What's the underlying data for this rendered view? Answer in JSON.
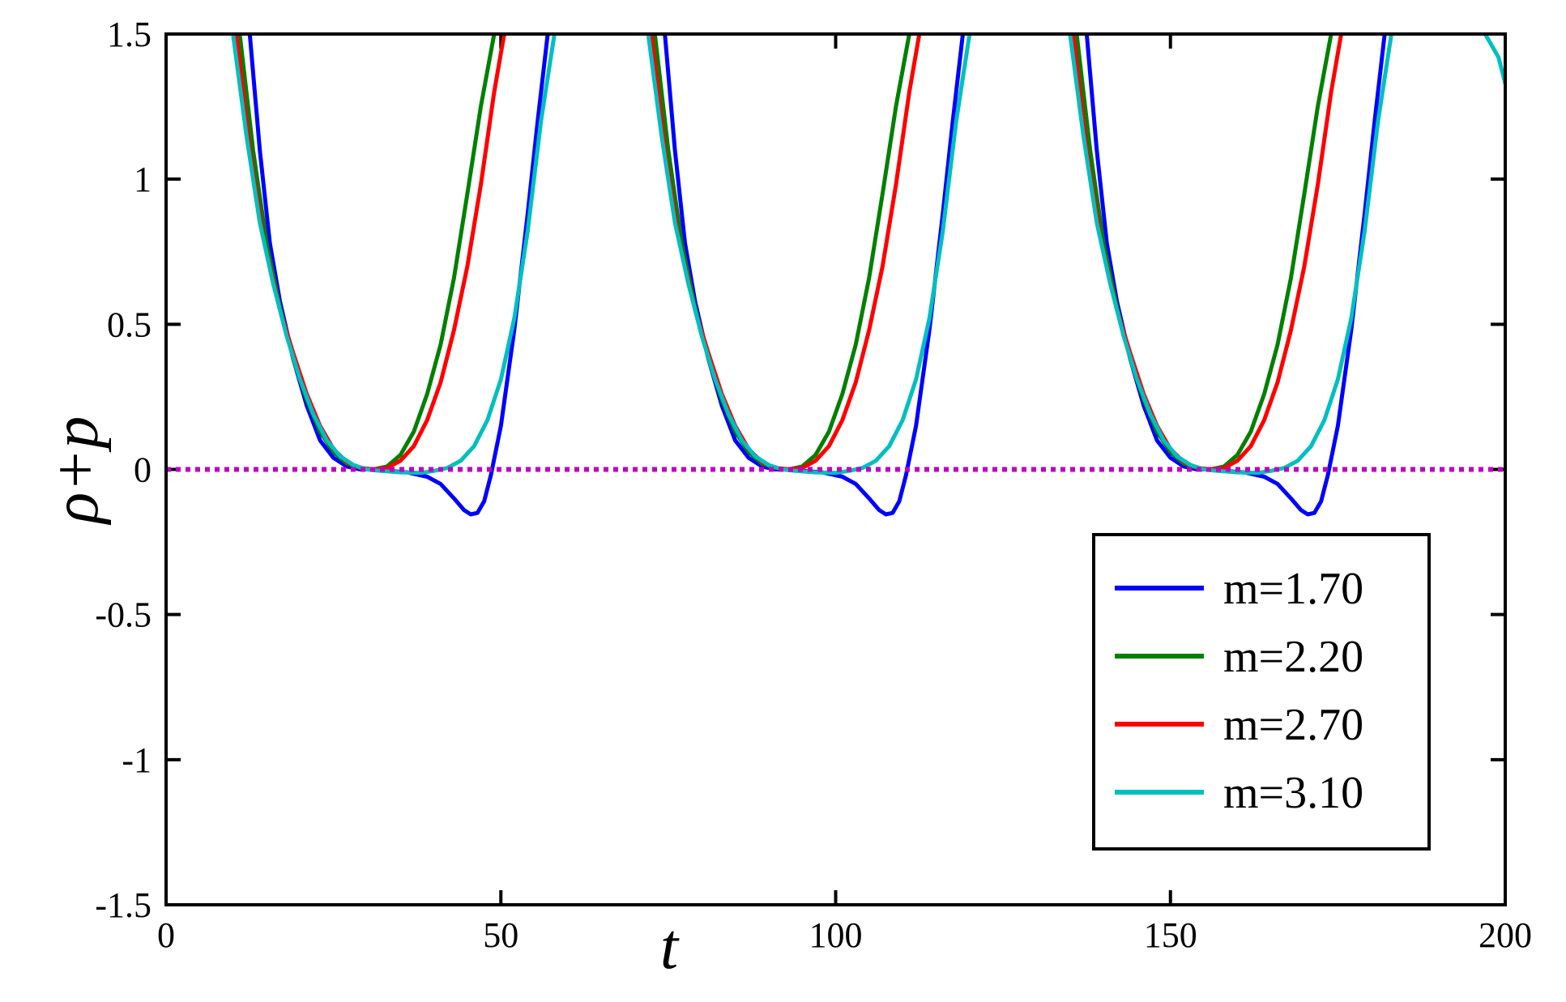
{
  "chart_data": {
    "type": "line",
    "title": "",
    "xlabel": "t",
    "ylabel": "ρ+p",
    "xlim": [
      0,
      200
    ],
    "ylim": [
      -1.5,
      1.5
    ],
    "xticks": [
      0,
      50,
      100,
      150,
      200
    ],
    "xtick_labels": [
      "0",
      "50",
      "100",
      "150",
      "200"
    ],
    "yticks": [
      -1.5,
      -1,
      -0.5,
      0,
      0.5,
      1,
      1.5
    ],
    "ytick_labels": [
      "-1.5",
      "-1",
      "-0.5",
      "0",
      "0.5",
      "1",
      "1.5"
    ],
    "grid": false,
    "legend_position": "lower-right",
    "reference_line": {
      "y": 0,
      "color": "#c000c0",
      "style": "dotted"
    },
    "series": [
      {
        "name": "m=1.70",
        "color": "#0000ff",
        "points": [
          [
            12.5,
            1.5
          ],
          [
            14,
            1.1
          ],
          [
            15.5,
            0.78
          ],
          [
            17,
            0.58
          ],
          [
            19,
            0.38
          ],
          [
            21,
            0.22
          ],
          [
            23,
            0.1
          ],
          [
            25,
            0.04
          ],
          [
            27,
            0.01
          ],
          [
            29,
            0.0
          ],
          [
            31,
            0.0
          ],
          [
            33,
            -0.005
          ],
          [
            36,
            -0.01
          ],
          [
            39,
            -0.025
          ],
          [
            41,
            -0.05
          ],
          [
            43,
            -0.1
          ],
          [
            44.5,
            -0.14
          ],
          [
            45.5,
            -0.155
          ],
          [
            46.5,
            -0.15
          ],
          [
            47.5,
            -0.11
          ],
          [
            48.5,
            -0.02
          ],
          [
            50,
            0.15
          ],
          [
            52,
            0.48
          ],
          [
            54,
            0.88
          ],
          [
            55.5,
            1.2
          ],
          [
            57,
            1.5
          ],
          [
            74.5,
            1.5
          ],
          [
            76,
            1.1
          ],
          [
            77.5,
            0.78
          ],
          [
            79,
            0.58
          ],
          [
            81,
            0.38
          ],
          [
            83,
            0.22
          ],
          [
            85,
            0.1
          ],
          [
            87,
            0.04
          ],
          [
            89,
            0.01
          ],
          [
            91,
            0.0
          ],
          [
            93,
            0.0
          ],
          [
            95,
            -0.005
          ],
          [
            98,
            -0.01
          ],
          [
            101,
            -0.025
          ],
          [
            103,
            -0.05
          ],
          [
            105,
            -0.1
          ],
          [
            106.5,
            -0.14
          ],
          [
            107.5,
            -0.155
          ],
          [
            108.5,
            -0.15
          ],
          [
            109.5,
            -0.11
          ],
          [
            110.5,
            -0.02
          ],
          [
            112,
            0.15
          ],
          [
            114,
            0.48
          ],
          [
            116,
            0.88
          ],
          [
            117.5,
            1.2
          ],
          [
            119,
            1.5
          ],
          [
            137.5,
            1.5
          ],
          [
            139,
            1.1
          ],
          [
            140.5,
            0.78
          ],
          [
            142,
            0.58
          ],
          [
            144,
            0.38
          ],
          [
            146,
            0.22
          ],
          [
            148,
            0.1
          ],
          [
            150,
            0.04
          ],
          [
            152,
            0.01
          ],
          [
            154,
            0.0
          ],
          [
            156,
            0.0
          ],
          [
            158,
            -0.005
          ],
          [
            161,
            -0.01
          ],
          [
            164,
            -0.025
          ],
          [
            166,
            -0.05
          ],
          [
            168,
            -0.1
          ],
          [
            169.5,
            -0.14
          ],
          [
            170.5,
            -0.155
          ],
          [
            171.5,
            -0.15
          ],
          [
            172.5,
            -0.11
          ],
          [
            173.5,
            -0.02
          ],
          [
            175,
            0.15
          ],
          [
            177,
            0.48
          ],
          [
            179,
            0.88
          ],
          [
            180.5,
            1.2
          ],
          [
            182,
            1.5
          ]
        ]
      },
      {
        "name": "m=2.20",
        "color": "#008000",
        "points": [
          [
            11,
            1.5
          ],
          [
            13,
            1.1
          ],
          [
            15,
            0.78
          ],
          [
            17,
            0.56
          ],
          [
            19,
            0.38
          ],
          [
            21,
            0.24
          ],
          [
            23,
            0.13
          ],
          [
            25,
            0.06
          ],
          [
            27,
            0.02
          ],
          [
            29,
            0.005
          ],
          [
            31,
            0.0
          ],
          [
            33,
            0.01
          ],
          [
            35,
            0.05
          ],
          [
            37,
            0.13
          ],
          [
            39,
            0.26
          ],
          [
            41,
            0.43
          ],
          [
            43,
            0.66
          ],
          [
            45,
            0.95
          ],
          [
            47,
            1.25
          ],
          [
            49,
            1.5
          ],
          [
            73,
            1.5
          ],
          [
            75,
            1.1
          ],
          [
            77,
            0.78
          ],
          [
            79,
            0.56
          ],
          [
            81,
            0.38
          ],
          [
            83,
            0.24
          ],
          [
            85,
            0.13
          ],
          [
            87,
            0.06
          ],
          [
            89,
            0.02
          ],
          [
            91,
            0.005
          ],
          [
            93,
            0.0
          ],
          [
            95,
            0.01
          ],
          [
            97,
            0.05
          ],
          [
            99,
            0.13
          ],
          [
            101,
            0.26
          ],
          [
            103,
            0.43
          ],
          [
            105,
            0.66
          ],
          [
            107,
            0.95
          ],
          [
            109,
            1.25
          ],
          [
            111,
            1.5
          ],
          [
            136,
            1.5
          ],
          [
            138,
            1.1
          ],
          [
            140,
            0.78
          ],
          [
            142,
            0.56
          ],
          [
            144,
            0.38
          ],
          [
            146,
            0.24
          ],
          [
            148,
            0.13
          ],
          [
            150,
            0.06
          ],
          [
            152,
            0.02
          ],
          [
            154,
            0.005
          ],
          [
            156,
            0.0
          ],
          [
            158,
            0.01
          ],
          [
            160,
            0.05
          ],
          [
            162,
            0.13
          ],
          [
            164,
            0.26
          ],
          [
            166,
            0.43
          ],
          [
            168,
            0.66
          ],
          [
            170,
            0.95
          ],
          [
            172,
            1.25
          ],
          [
            174,
            1.5
          ]
        ]
      },
      {
        "name": "m=2.70",
        "color": "#ff0000",
        "points": [
          [
            10.5,
            1.5
          ],
          [
            12.5,
            1.1
          ],
          [
            14.5,
            0.8
          ],
          [
            17,
            0.55
          ],
          [
            19,
            0.4
          ],
          [
            21,
            0.26
          ],
          [
            23,
            0.15
          ],
          [
            25,
            0.07
          ],
          [
            27,
            0.025
          ],
          [
            29,
            0.005
          ],
          [
            31,
            0.0
          ],
          [
            33,
            0.005
          ],
          [
            35,
            0.03
          ],
          [
            37,
            0.08
          ],
          [
            39,
            0.17
          ],
          [
            41,
            0.3
          ],
          [
            43,
            0.48
          ],
          [
            45,
            0.7
          ],
          [
            47,
            0.98
          ],
          [
            49,
            1.3
          ],
          [
            50.5,
            1.5
          ],
          [
            72.5,
            1.5
          ],
          [
            74.5,
            1.1
          ],
          [
            76.5,
            0.8
          ],
          [
            79,
            0.55
          ],
          [
            81,
            0.4
          ],
          [
            83,
            0.26
          ],
          [
            85,
            0.15
          ],
          [
            87,
            0.07
          ],
          [
            89,
            0.025
          ],
          [
            91,
            0.005
          ],
          [
            93,
            0.0
          ],
          [
            95,
            0.005
          ],
          [
            97,
            0.03
          ],
          [
            99,
            0.08
          ],
          [
            101,
            0.17
          ],
          [
            103,
            0.3
          ],
          [
            105,
            0.48
          ],
          [
            107,
            0.7
          ],
          [
            109,
            0.98
          ],
          [
            111,
            1.3
          ],
          [
            112.5,
            1.5
          ],
          [
            135.5,
            1.5
          ],
          [
            137.5,
            1.1
          ],
          [
            139.5,
            0.8
          ],
          [
            142,
            0.55
          ],
          [
            144,
            0.4
          ],
          [
            146,
            0.26
          ],
          [
            148,
            0.15
          ],
          [
            150,
            0.07
          ],
          [
            152,
            0.025
          ],
          [
            154,
            0.005
          ],
          [
            156,
            0.0
          ],
          [
            158,
            0.005
          ],
          [
            160,
            0.03
          ],
          [
            162,
            0.08
          ],
          [
            164,
            0.17
          ],
          [
            166,
            0.3
          ],
          [
            168,
            0.48
          ],
          [
            170,
            0.7
          ],
          [
            172,
            0.98
          ],
          [
            174,
            1.3
          ],
          [
            175.5,
            1.5
          ]
        ]
      },
      {
        "name": "m=3.10",
        "color": "#00bfbf",
        "points": [
          [
            10,
            1.5
          ],
          [
            12,
            1.15
          ],
          [
            14,
            0.85
          ],
          [
            16,
            0.64
          ],
          [
            18,
            0.46
          ],
          [
            20,
            0.31
          ],
          [
            22,
            0.19
          ],
          [
            24,
            0.1
          ],
          [
            26,
            0.045
          ],
          [
            28,
            0.015
          ],
          [
            30,
            0.0
          ],
          [
            32,
            -0.005
          ],
          [
            35,
            -0.01
          ],
          [
            38,
            -0.012
          ],
          [
            40,
            -0.005
          ],
          [
            42,
            0.005
          ],
          [
            44,
            0.03
          ],
          [
            46,
            0.08
          ],
          [
            48,
            0.17
          ],
          [
            50,
            0.31
          ],
          [
            52,
            0.52
          ],
          [
            54,
            0.82
          ],
          [
            56,
            1.2
          ],
          [
            58,
            1.5
          ],
          [
            72,
            1.5
          ],
          [
            74,
            1.15
          ],
          [
            76,
            0.85
          ],
          [
            78,
            0.64
          ],
          [
            80,
            0.46
          ],
          [
            82,
            0.31
          ],
          [
            84,
            0.19
          ],
          [
            86,
            0.1
          ],
          [
            88,
            0.045
          ],
          [
            90,
            0.015
          ],
          [
            92,
            0.0
          ],
          [
            94,
            -0.005
          ],
          [
            97,
            -0.01
          ],
          [
            100,
            -0.012
          ],
          [
            102,
            -0.005
          ],
          [
            104,
            0.005
          ],
          [
            106,
            0.03
          ],
          [
            108,
            0.08
          ],
          [
            110,
            0.17
          ],
          [
            112,
            0.31
          ],
          [
            114,
            0.52
          ],
          [
            116,
            0.82
          ],
          [
            118,
            1.2
          ],
          [
            120,
            1.5
          ],
          [
            135,
            1.5
          ],
          [
            137,
            1.15
          ],
          [
            139,
            0.85
          ],
          [
            141,
            0.64
          ],
          [
            143,
            0.46
          ],
          [
            145,
            0.31
          ],
          [
            147,
            0.19
          ],
          [
            149,
            0.1
          ],
          [
            151,
            0.045
          ],
          [
            153,
            0.015
          ],
          [
            155,
            0.0
          ],
          [
            157,
            -0.005
          ],
          [
            160,
            -0.01
          ],
          [
            163,
            -0.012
          ],
          [
            165,
            -0.005
          ],
          [
            167,
            0.005
          ],
          [
            169,
            0.03
          ],
          [
            171,
            0.08
          ],
          [
            173,
            0.17
          ],
          [
            175,
            0.31
          ],
          [
            177,
            0.52
          ],
          [
            179,
            0.82
          ],
          [
            181,
            1.2
          ],
          [
            183,
            1.5
          ],
          [
            197,
            1.5
          ],
          [
            199,
            1.42
          ],
          [
            200,
            1.33
          ]
        ]
      }
    ]
  }
}
